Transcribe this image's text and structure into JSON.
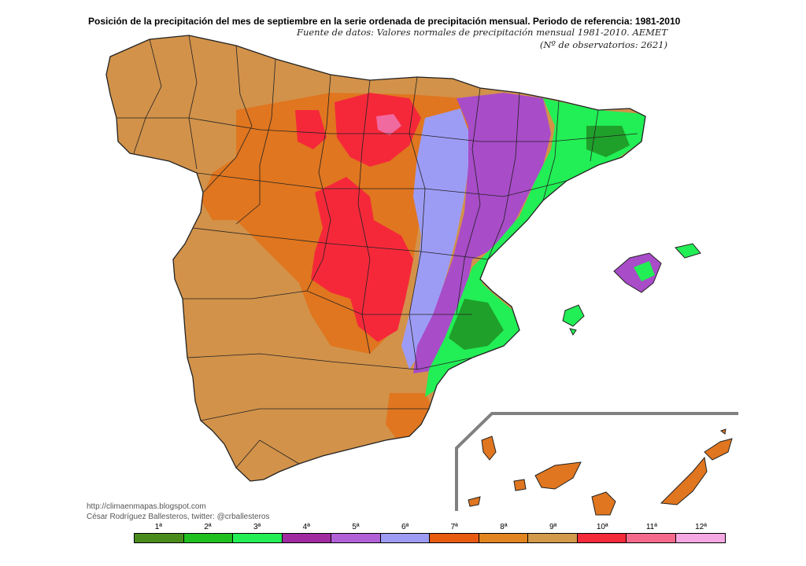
{
  "title": "Posición de la precipitación del mes de septiembre en la serie ordenada de precipitación mensual. Periodo de referencia: 1981-2010",
  "source_line1": "Fuente de datos: Valores normales de precipitación mensual 1981-2010. AEMET",
  "source_line2": "(Nº de observatorios: 2621)",
  "credit_url": "http://climaenmapas.blogspot.com",
  "credit_author": "César Rodríguez Ballesteros, twitter: @crballesteros",
  "legend": [
    {
      "label": "1ª",
      "color": "#4a8c1c"
    },
    {
      "label": "2ª",
      "color": "#1fbf1f"
    },
    {
      "label": "3ª",
      "color": "#22ee55"
    },
    {
      "label": "4ª",
      "color": "#a02aa0"
    },
    {
      "label": "5ª",
      "color": "#b160d8"
    },
    {
      "label": "6ª",
      "color": "#9d9cf5"
    },
    {
      "label": "7ª",
      "color": "#e85a10"
    },
    {
      "label": "8ª",
      "color": "#e0851f"
    },
    {
      "label": "9ª",
      "color": "#d29a4a"
    },
    {
      "label": "10ª",
      "color": "#f52a3a"
    },
    {
      "label": "11ª",
      "color": "#f56a8c"
    },
    {
      "label": "12ª",
      "color": "#f5a8e2"
    }
  ],
  "colors": {
    "base": "#d2924a",
    "orange": "#e0761f",
    "red": "#f5283a",
    "pink": "#f06aa0",
    "lightpurple": "#9d9cf5",
    "purple": "#a84cc8",
    "green": "#22ee55",
    "darkgreen": "#1fa02a",
    "border": "#222222",
    "frame": "#808080"
  }
}
